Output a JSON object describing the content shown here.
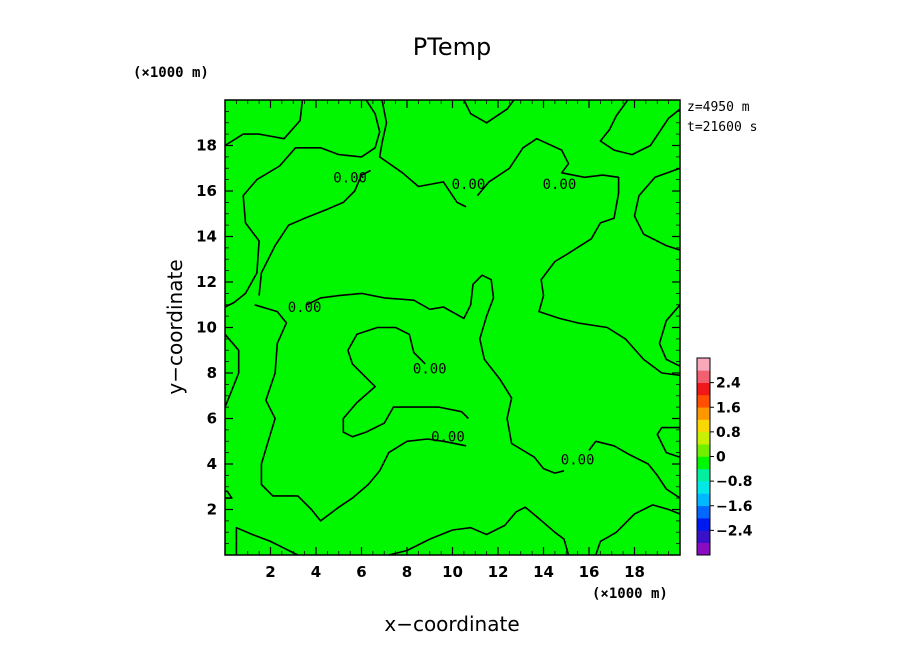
{
  "chart_data": {
    "type": "contour",
    "title": "PTemp",
    "xlabel": "x−coordinate",
    "ylabel": "y−coordinate",
    "x_unit": "(×1000 m)",
    "y_unit": "(×1000 m)",
    "xlim": [
      0,
      20
    ],
    "ylim": [
      0,
      20
    ],
    "x_ticks": [
      2,
      4,
      6,
      8,
      10,
      12,
      14,
      16,
      18
    ],
    "y_ticks": [
      2,
      4,
      6,
      8,
      10,
      12,
      14,
      16,
      18
    ],
    "x_tick_labels": [
      "2",
      "4",
      "6",
      "8",
      "10",
      "12",
      "14",
      "16",
      "18"
    ],
    "y_tick_labels": [
      "2",
      "4",
      "6",
      "8",
      "10",
      "12",
      "14",
      "16",
      "18"
    ],
    "info": [
      "z=4950 m",
      "t=21600 s"
    ],
    "fill_color": "#00f700",
    "contour_level": 0.0,
    "contour_labels": [
      {
        "text": "0.00",
        "x": 5.5,
        "y": 16.6
      },
      {
        "text": "0.00",
        "x": 10.7,
        "y": 16.3
      },
      {
        "text": "0.00",
        "x": 14.7,
        "y": 16.3
      },
      {
        "text": "0.00",
        "x": 3.5,
        "y": 10.9
      },
      {
        "text": "0.00",
        "x": 9.0,
        "y": 8.2
      },
      {
        "text": "0.00",
        "x": 9.8,
        "y": 5.2
      },
      {
        "text": "0.00",
        "x": 15.5,
        "y": 4.2
      }
    ],
    "contours": [
      [
        [
          0,
          18
        ],
        [
          0.8,
          18.5
        ],
        [
          1.5,
          18.5
        ],
        [
          2.6,
          18.3
        ],
        [
          3.3,
          19.1
        ],
        [
          3.4,
          20
        ]
      ],
      [
        [
          6.2,
          20
        ],
        [
          6.6,
          19.4
        ],
        [
          6.8,
          18.6
        ],
        [
          6.6,
          17.9
        ],
        [
          6.0,
          17.5
        ],
        [
          5.0,
          17.6
        ],
        [
          4.2,
          17.9
        ],
        [
          3.1,
          17.9
        ],
        [
          2.4,
          17.1
        ],
        [
          1.4,
          16.5
        ],
        [
          0.8,
          15.8
        ],
        [
          0.9,
          14.6
        ],
        [
          1.5,
          13.8
        ],
        [
          1.4,
          12.4
        ],
        [
          0.9,
          11.5
        ],
        [
          0.4,
          11.1
        ],
        [
          0,
          10.9
        ]
      ],
      [
        [
          6.4,
          16.9
        ],
        [
          6.0,
          16.7
        ],
        [
          5.7,
          16.0
        ],
        [
          5.2,
          15.5
        ],
        [
          4.5,
          15.2
        ],
        [
          3.5,
          14.8
        ],
        [
          2.8,
          14.5
        ],
        [
          2.2,
          13.6
        ],
        [
          1.6,
          12.4
        ],
        [
          1.5,
          11.4
        ]
      ],
      [
        [
          6.9,
          20
        ],
        [
          7.1,
          19
        ],
        [
          6.9,
          18.1
        ],
        [
          6.8,
          17.5
        ],
        [
          7.8,
          16.8
        ],
        [
          8.5,
          16.2
        ],
        [
          9.6,
          16.4
        ],
        [
          10.2,
          15.5
        ],
        [
          10.6,
          15.3
        ]
      ],
      [
        [
          10.5,
          20
        ],
        [
          10.8,
          19.4
        ],
        [
          11.5,
          19
        ],
        [
          12.4,
          19.6
        ],
        [
          12.7,
          20
        ]
      ],
      [
        [
          11.1,
          15.8
        ],
        [
          11.6,
          16.4
        ],
        [
          12.5,
          17.0
        ],
        [
          13.1,
          17.9
        ],
        [
          13.7,
          18.3
        ],
        [
          14.8,
          17.8
        ],
        [
          15.1,
          17.2
        ],
        [
          14.8,
          16.8
        ],
        [
          15.8,
          16.6
        ],
        [
          16.6,
          16.7
        ],
        [
          17.3,
          16.6
        ],
        [
          17.3,
          15.9
        ],
        [
          17.1,
          14.8
        ],
        [
          16.5,
          14.6
        ],
        [
          16.1,
          13.9
        ],
        [
          15.0,
          13.2
        ],
        [
          14.5,
          12.9
        ],
        [
          13.9,
          12.1
        ],
        [
          14.0,
          11.4
        ],
        [
          13.8,
          10.7
        ],
        [
          14.7,
          10.4
        ],
        [
          15.5,
          10.2
        ],
        [
          16.8,
          10.0
        ],
        [
          17.6,
          9.5
        ],
        [
          18.4,
          8.6
        ],
        [
          19.2,
          8.0
        ],
        [
          20,
          7.9
        ]
      ],
      [
        [
          17.7,
          20
        ],
        [
          17.2,
          19.3
        ],
        [
          16.9,
          18.7
        ],
        [
          16.5,
          18.2
        ],
        [
          17.1,
          17.8
        ],
        [
          17.9,
          17.6
        ],
        [
          18.7,
          18.0
        ],
        [
          19.5,
          19.2
        ],
        [
          20,
          19.6
        ]
      ],
      [
        [
          20,
          17.0
        ],
        [
          18.9,
          16.6
        ],
        [
          18.2,
          15.8
        ],
        [
          18.0,
          14.9
        ],
        [
          18.4,
          14.1
        ],
        [
          19.4,
          13.6
        ],
        [
          20,
          13.4
        ]
      ],
      [
        [
          20,
          11.0
        ],
        [
          19.4,
          10.3
        ],
        [
          19.1,
          9.3
        ],
        [
          19.4,
          8.6
        ],
        [
          20,
          8.3
        ]
      ],
      [
        [
          0,
          9.7
        ],
        [
          0.6,
          9.0
        ],
        [
          0.6,
          8.0
        ],
        [
          0.2,
          7.0
        ],
        [
          0,
          6.5
        ]
      ],
      [
        [
          1.3,
          11.0
        ],
        [
          2.3,
          10.7
        ],
        [
          2.7,
          10.2
        ],
        [
          2.3,
          9.3
        ],
        [
          2.2,
          8.0
        ],
        [
          1.8,
          6.8
        ],
        [
          2.2,
          6.0
        ],
        [
          1.9,
          5.0
        ],
        [
          1.6,
          4.0
        ],
        [
          1.6,
          3.1
        ],
        [
          2.1,
          2.6
        ],
        [
          3.2,
          2.6
        ],
        [
          3.8,
          2.0
        ],
        [
          4.2,
          1.5
        ],
        [
          5.0,
          2.1
        ],
        [
          5.6,
          2.5
        ],
        [
          6.3,
          3.1
        ],
        [
          6.8,
          3.7
        ],
        [
          7.2,
          4.5
        ],
        [
          8.0,
          5.0
        ],
        [
          8.9,
          5.1
        ],
        [
          9.6,
          5.0
        ],
        [
          10.6,
          4.8
        ]
      ],
      [
        [
          3.6,
          11.0
        ],
        [
          4.2,
          11.3
        ],
        [
          5.0,
          11.4
        ],
        [
          6.0,
          11.5
        ],
        [
          7.0,
          11.3
        ],
        [
          8.3,
          11.2
        ],
        [
          9.0,
          10.8
        ],
        [
          9.6,
          10.9
        ],
        [
          10.5,
          10.4
        ],
        [
          10.8,
          11.0
        ],
        [
          10.9,
          11.9
        ],
        [
          11.3,
          12.3
        ],
        [
          11.7,
          12.1
        ],
        [
          11.8,
          11.3
        ],
        [
          11.5,
          10.5
        ],
        [
          11.2,
          9.5
        ],
        [
          11.4,
          8.6
        ],
        [
          12.1,
          7.7
        ],
        [
          12.6,
          6.9
        ],
        [
          12.4,
          6.0
        ],
        [
          12.6,
          4.9
        ],
        [
          13.6,
          4.3
        ],
        [
          14.0,
          3.8
        ],
        [
          14.5,
          3.6
        ],
        [
          14.9,
          3.7
        ]
      ],
      [
        [
          16.0,
          4.6
        ],
        [
          16.3,
          5.0
        ],
        [
          17.1,
          4.8
        ],
        [
          17.8,
          4.4
        ],
        [
          18.6,
          4.0
        ],
        [
          19.0,
          3.5
        ],
        [
          19.4,
          2.9
        ],
        [
          20,
          2.5
        ]
      ],
      [
        [
          20,
          5.6
        ],
        [
          19.2,
          5.6
        ],
        [
          19.0,
          5.3
        ],
        [
          19.4,
          4.5
        ],
        [
          20,
          4.3
        ]
      ],
      [
        [
          0,
          2.5
        ],
        [
          0.3,
          2.5
        ],
        [
          0.1,
          2.8
        ],
        [
          0,
          2.8
        ]
      ],
      [
        [
          0.5,
          0
        ],
        [
          0.5,
          1.2
        ],
        [
          1.2,
          0.9
        ],
        [
          2.0,
          0.6
        ],
        [
          2.6,
          0.3
        ],
        [
          3.2,
          0
        ]
      ],
      [
        [
          7.2,
          0
        ],
        [
          8.0,
          0.2
        ],
        [
          9.0,
          0.7
        ],
        [
          10.0,
          1.1
        ],
        [
          10.8,
          1.2
        ],
        [
          11.5,
          0.9
        ],
        [
          12.3,
          1.3
        ],
        [
          12.8,
          1.9
        ],
        [
          13.2,
          2.1
        ],
        [
          13.8,
          1.6
        ],
        [
          14.5,
          1.0
        ],
        [
          14.9,
          0.7
        ],
        [
          15.1,
          0
        ]
      ],
      [
        [
          16.3,
          0
        ],
        [
          16.5,
          0.6
        ],
        [
          17.2,
          1.0
        ],
        [
          18.0,
          1.8
        ],
        [
          18.8,
          2.2
        ],
        [
          19.5,
          2.0
        ],
        [
          20,
          1.8
        ]
      ],
      [
        [
          10.7,
          6.0
        ],
        [
          10.4,
          6.3
        ],
        [
          9.4,
          6.5
        ],
        [
          8.6,
          6.5
        ],
        [
          7.4,
          6.5
        ],
        [
          7.0,
          5.8
        ],
        [
          6.2,
          5.4
        ],
        [
          5.6,
          5.2
        ],
        [
          5.2,
          5.4
        ],
        [
          5.2,
          6.0
        ],
        [
          5.8,
          6.7
        ],
        [
          6.6,
          7.4
        ],
        [
          6.1,
          7.9
        ],
        [
          5.6,
          8.4
        ],
        [
          5.4,
          9.0
        ],
        [
          5.8,
          9.7
        ],
        [
          6.7,
          10.0
        ],
        [
          7.5,
          10.0
        ],
        [
          8.1,
          9.7
        ],
        [
          8.3,
          8.9
        ],
        [
          8.8,
          8.4
        ]
      ]
    ],
    "colorbar": {
      "ticks": [
        2.4,
        1.6,
        0.8,
        0,
        -0.8,
        -1.6,
        -2.4
      ],
      "tick_labels": [
        "2.4",
        "1.6",
        "0.8",
        "0",
        "−0.8",
        "−1.6",
        "−2.4"
      ],
      "range": [
        -3.2,
        3.2
      ],
      "colors": [
        "#8a0cc0",
        "#3a10c8",
        "#0018f0",
        "#0068ff",
        "#00b8ff",
        "#00e8e8",
        "#00f0a0",
        "#00f700",
        "#70f000",
        "#c8f000",
        "#f8d800",
        "#ff9800",
        "#ff5000",
        "#f01818",
        "#f06070",
        "#f8a8b8"
      ]
    }
  }
}
